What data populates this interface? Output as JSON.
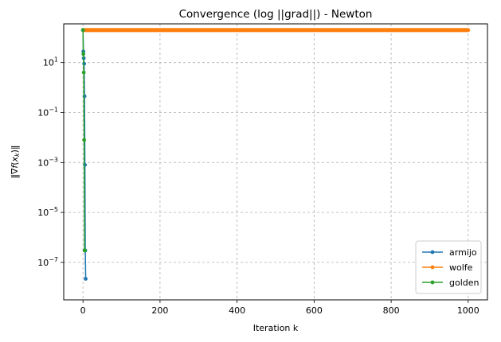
{
  "chart_data": {
    "type": "line",
    "title": "Convergence (log ||grad||) - Newton",
    "xlabel": "Iteration k",
    "ylabel": "‖∇f(x_k)‖",
    "xlim": [
      -50,
      1050
    ],
    "ylim_log10": [
      -8.5,
      2.55
    ],
    "yscale": "log",
    "grid": true,
    "legend_position": "lower-right",
    "xticks": [
      0,
      200,
      400,
      600,
      800,
      1000
    ],
    "yticks_exponents": [
      1,
      -1,
      -3,
      -5,
      -7
    ],
    "series": [
      {
        "name": "armijo",
        "color": "#1f77b4",
        "marker": "circle",
        "x": [
          0,
          1,
          2,
          3,
          4,
          5,
          6,
          7
        ],
        "y": [
          200,
          28,
          15,
          9,
          0.45,
          0.0008,
          3e-07,
          2.2e-08
        ]
      },
      {
        "name": "wolfe",
        "color": "#ff7f0e",
        "marker": "circle",
        "x_range": [
          0,
          1000
        ],
        "y_constant": 200
      },
      {
        "name": "golden",
        "color": "#2ca02c",
        "marker": "circle",
        "x": [
          0,
          1,
          2,
          3,
          4,
          5
        ],
        "y": [
          200,
          22,
          4,
          0.008,
          3e-07,
          3e-07
        ]
      }
    ]
  }
}
